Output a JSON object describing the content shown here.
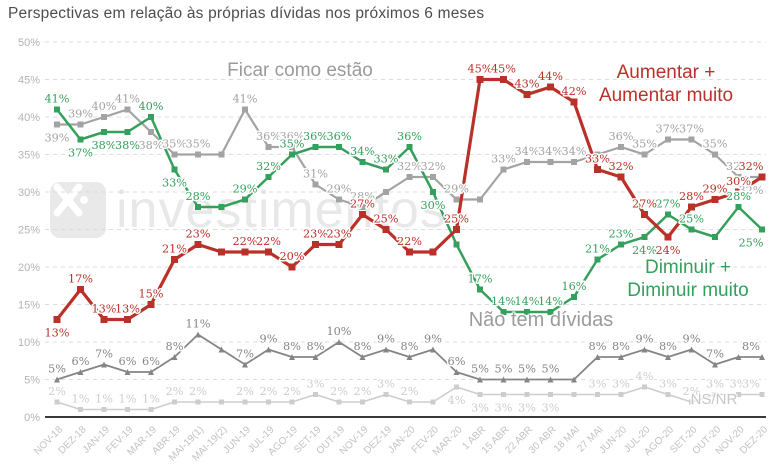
{
  "title": "Perspectivas em relação às próprias dívidas nos próximos 6 meses",
  "watermark": {
    "text": "investimentos"
  },
  "axes": {
    "y_ticks": [
      "50%",
      "45%",
      "40%",
      "35%",
      "30%",
      "25%",
      "20%",
      "15%",
      "10%",
      "5%",
      "0%"
    ],
    "y_max": 50,
    "y_min": 0,
    "y_step": 5
  },
  "chart_data": {
    "type": "line",
    "title": "Perspectivas em relação às próprias dívidas nos próximos 6 meses",
    "ylim": [
      0,
      50
    ],
    "grid": "dashed-horizontal",
    "categories": [
      "NOV-18",
      "DEZ-18",
      "JAN-19",
      "FEV-19",
      "MAR-19",
      "ABR-19",
      "MAI-19(1)",
      "MAI-19(2)",
      "JUN-19",
      "JUL-19",
      "AGO-19",
      "SET-19",
      "OUT-19",
      "NOV-19",
      "DEZ-19",
      "JAN-20",
      "FEV-20",
      "MAR-20",
      "1 ABR",
      "15 ABR",
      "22 ABR",
      "30 ABR",
      "18 MAI",
      "27 MAI",
      "JUN-20",
      "JUL-20",
      "AGO-20",
      "SET-20",
      "OUT-20",
      "NOV-20",
      "DEZ-20"
    ],
    "series": [
      {
        "key": "nsnr",
        "name": "NS/NR",
        "color": "#cdcdcd",
        "marker": "square",
        "width": 1.6,
        "msize": 5,
        "values": [
          2,
          1,
          1,
          1,
          1,
          2,
          2,
          2,
          2,
          2,
          2,
          3,
          2,
          2,
          3,
          2,
          2,
          4,
          3,
          3,
          3,
          3,
          3,
          3,
          3,
          4,
          3,
          2,
          3,
          3,
          3
        ],
        "labels": [
          "2%",
          "1%",
          "1%",
          "1%",
          "1%",
          "2%",
          "2%",
          "",
          "2%",
          "2%",
          "2%",
          "3%",
          "2%",
          "2%",
          "3%",
          "2%",
          "",
          "4%",
          "3%",
          "3%",
          "3%",
          "3%",
          "",
          "3%",
          "3%",
          "4%",
          "3%",
          "2%",
          "3%",
          "3%",
          "3%"
        ],
        "below": [
          17,
          18,
          19,
          20,
          21
        ]
      },
      {
        "key": "naotem",
        "name": "Não tem dívidas",
        "color": "#858585",
        "marker": "triangle",
        "width": 1.8,
        "msize": 6,
        "values": [
          5,
          6,
          7,
          6,
          6,
          8,
          11,
          9,
          7,
          9,
          8,
          8,
          10,
          8,
          9,
          8,
          9,
          6,
          5,
          5,
          5,
          5,
          5,
          8,
          8,
          9,
          8,
          9,
          7,
          8,
          8
        ],
        "labels": [
          "5%",
          "6%",
          "7%",
          "6%",
          "6%",
          "8%",
          "11%",
          "",
          "7%",
          "9%",
          "8%",
          "8%",
          "10%",
          "8%",
          "9%",
          "8%",
          "9%",
          "6%",
          "5%",
          "5%",
          "5%",
          "5%",
          "",
          "8%",
          "8%",
          "9%",
          "8%",
          "9%",
          "7%",
          "",
          "8%"
        ],
        "below": []
      },
      {
        "key": "ficar",
        "name": "Ficar como estão",
        "color": "#a3a3a3",
        "marker": "square",
        "width": 2.2,
        "msize": 6,
        "values": [
          39,
          39,
          40,
          41,
          38,
          35,
          35,
          35,
          41,
          36,
          36,
          31,
          29,
          28,
          30,
          32,
          32,
          29,
          29,
          33,
          34,
          34,
          34,
          35,
          36,
          35,
          37,
          37,
          35,
          32,
          32
        ],
        "labels": [
          "39%",
          "39%",
          "40%",
          "41%",
          "38%",
          "35%",
          "35%",
          "",
          "41%",
          "36%",
          "36%",
          "31%",
          "29%",
          "28%",
          "",
          "32%",
          "32%",
          "29%",
          "",
          "33%",
          "34%",
          "34%",
          "34%",
          "",
          "36%",
          "35%",
          "37%",
          "37%",
          "35%",
          "32%",
          "32%"
        ],
        "below": [
          0,
          4,
          30
        ]
      },
      {
        "key": "diminuir",
        "name": "Diminuir + Diminuir muito",
        "color": "#35a05c",
        "marker": "square",
        "width": 2.5,
        "msize": 6,
        "values": [
          41,
          37,
          38,
          38,
          40,
          33,
          28,
          28,
          29,
          32,
          35,
          36,
          36,
          34,
          33,
          36,
          30,
          23,
          17,
          14,
          14,
          14,
          16,
          21,
          23,
          24,
          27,
          25,
          24,
          28,
          25
        ],
        "labels": [
          "41%",
          "37%",
          "38%",
          "38%",
          "40%",
          "33%",
          "28%",
          "",
          "29%",
          "32%",
          "35%",
          "36%",
          "36%",
          "34%",
          "33%",
          "36%",
          "30%",
          "",
          "17%",
          "14%",
          "14%",
          "14%",
          "16%",
          "21%",
          "23%",
          "24%",
          "27%",
          "25%",
          "",
          "28%",
          "25%"
        ],
        "below": [
          1,
          2,
          3,
          5,
          16,
          25,
          30
        ]
      },
      {
        "key": "aumentar",
        "name": "Aumentar + Aumentar muito",
        "color": "#b93128",
        "marker": "square",
        "width": 3.2,
        "msize": 7,
        "values": [
          13,
          17,
          13,
          13,
          15,
          21,
          23,
          22,
          22,
          22,
          20,
          23,
          23,
          27,
          25,
          22,
          22,
          25,
          45,
          45,
          43,
          44,
          42,
          33,
          32,
          27,
          24,
          28,
          29,
          30,
          32
        ],
        "labels": [
          "13%",
          "17%",
          "13%",
          "13%",
          "15%",
          "21%",
          "23%",
          "",
          "22%",
          "22%",
          "20%",
          "23%",
          "23%",
          "27%",
          "25%",
          "22%",
          "",
          "25%",
          "45%",
          "45%",
          "43%",
          "44%",
          "42%",
          "33%",
          "32%",
          "27%",
          "24%",
          "28%",
          "29%",
          "30%",
          "32%"
        ],
        "below": [
          0,
          26
        ]
      }
    ],
    "annotations": [
      {
        "id": "ficar",
        "lines": [
          "Ficar como estão"
        ],
        "x": 300,
        "y": 76,
        "gap": 22,
        "size": 19,
        "color": "#9b9b9b"
      },
      {
        "id": "aumentar",
        "lines": [
          "Aumentar +",
          "Aumentar muito"
        ],
        "x": 666,
        "y": 78,
        "gap": 23,
        "size": 19,
        "color": "#b93128"
      },
      {
        "id": "diminuir",
        "lines": [
          "Diminuir +",
          "Diminuir muito"
        ],
        "x": 688,
        "y": 273,
        "gap": 23,
        "size": 19,
        "color": "#35a05c"
      },
      {
        "id": "naotem",
        "lines": [
          "Não tem dívidas"
        ],
        "x": 541,
        "y": 326,
        "gap": 22,
        "size": 20,
        "color": "#9b9b9b"
      },
      {
        "id": "nsnr",
        "lines": [
          "NS/NR"
        ],
        "x": 714,
        "y": 404,
        "gap": 20,
        "size": 15,
        "color": "#c6c6c6"
      }
    ]
  }
}
